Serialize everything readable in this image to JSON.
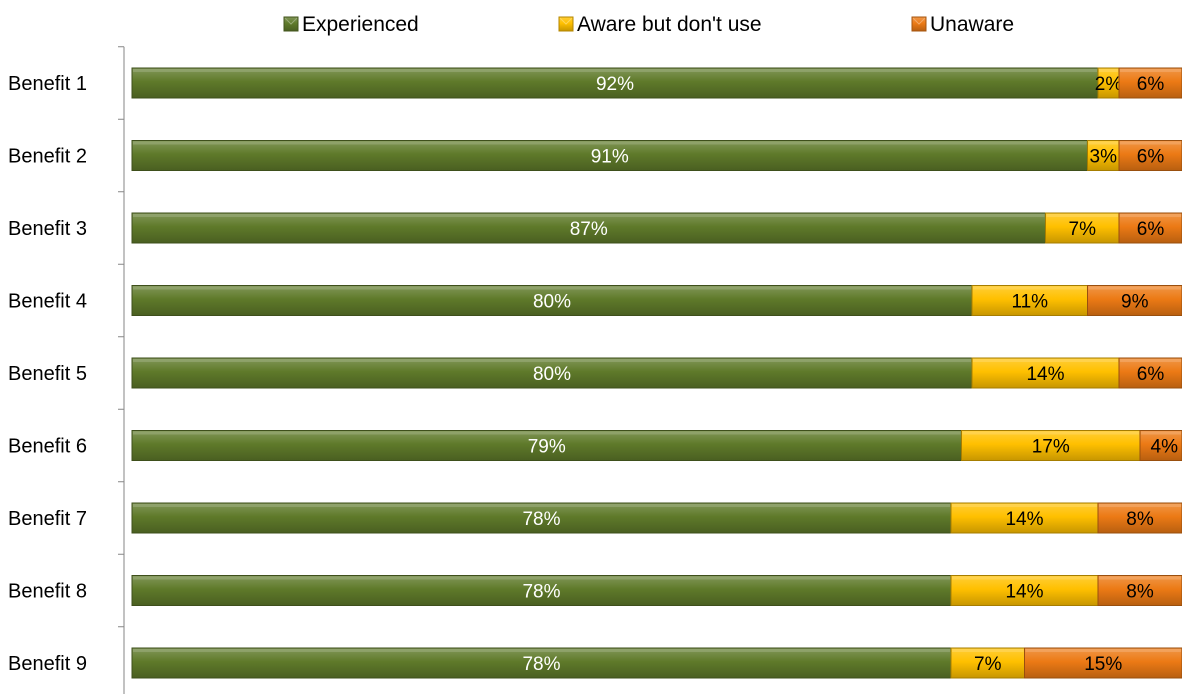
{
  "chart_data": {
    "type": "bar",
    "orientation": "horizontal",
    "stacked": true,
    "categories": [
      "Benefit 1",
      "Benefit 2",
      "Benefit 3",
      "Benefit 4",
      "Benefit 5",
      "Benefit 6",
      "Benefit 7",
      "Benefit 8",
      "Benefit 9"
    ],
    "series": [
      {
        "name": "Experienced",
        "color": "#5f7a2a",
        "label_color": "#ffffff",
        "values": [
          92,
          91,
          87,
          80,
          80,
          79,
          78,
          78,
          78
        ]
      },
      {
        "name": "Aware but don't use",
        "color": "#ffc000",
        "label_color": "#000000",
        "values": [
          2,
          3,
          7,
          11,
          14,
          17,
          14,
          14,
          7
        ]
      },
      {
        "name": "Unaware",
        "color": "#ec7a15",
        "label_color": "#000000",
        "values": [
          6,
          6,
          6,
          9,
          6,
          4,
          8,
          8,
          15
        ]
      }
    ],
    "value_suffix": "%",
    "xlim": [
      0,
      100
    ],
    "legend_position": "top",
    "grid": false
  }
}
